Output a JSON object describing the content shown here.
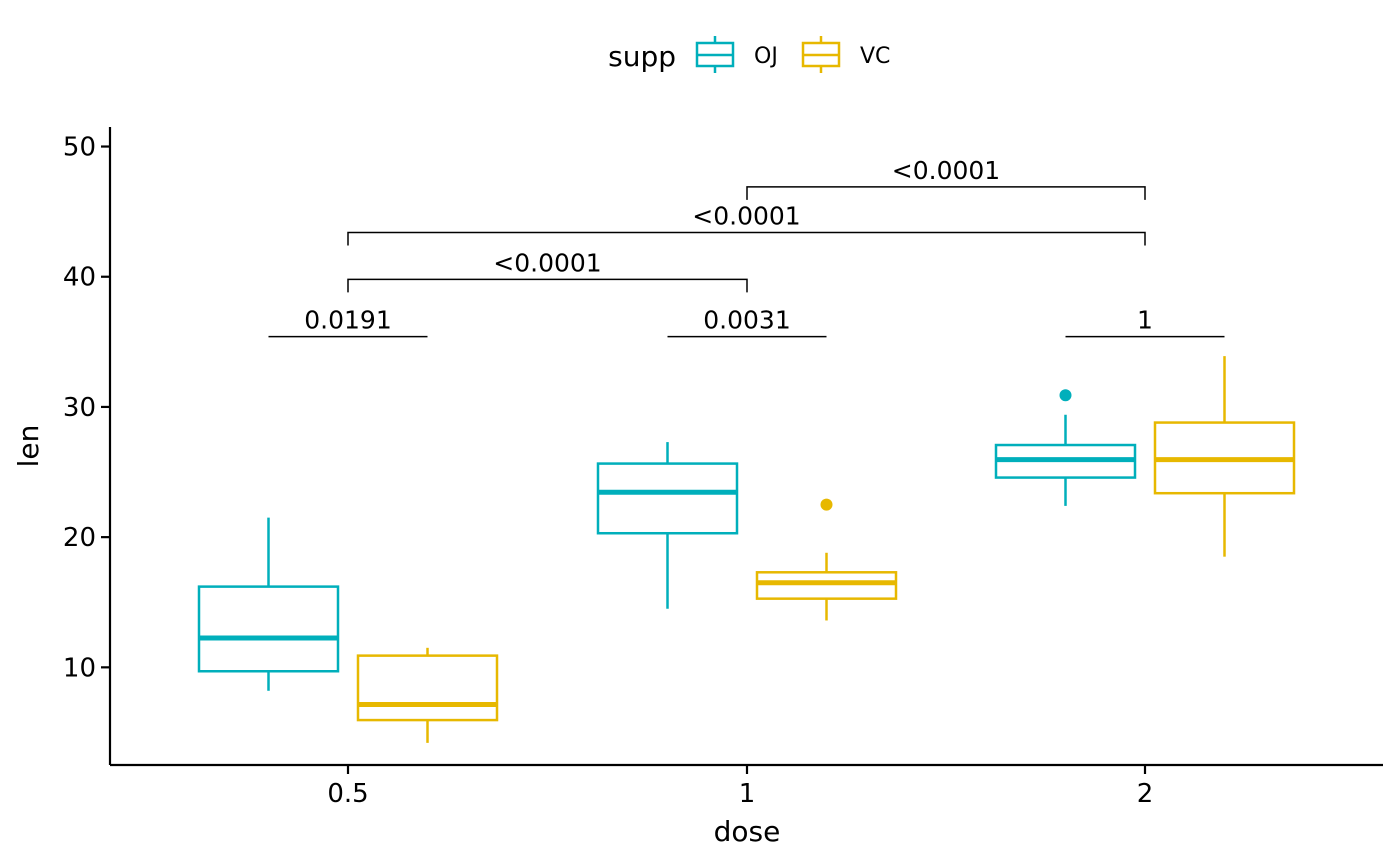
{
  "chart_data": {
    "type": "boxplot",
    "xlabel": "dose",
    "ylabel": "len",
    "categories": [
      "0.5",
      "1",
      "2"
    ],
    "ylim": [
      2.5,
      51.5
    ],
    "yticks": [
      10,
      20,
      30,
      40,
      50
    ],
    "ytick_labels": [
      "10",
      "20",
      "30",
      "40",
      "50"
    ],
    "grid": false,
    "legend": {
      "title": "supp",
      "position": "top"
    },
    "series": [
      {
        "name": "OJ",
        "color": "#00AFBB",
        "boxes": [
          {
            "category": "0.5",
            "whisker_low": 8.2,
            "q1": 9.7,
            "median": 12.25,
            "q3": 16.2,
            "whisker_high": 21.5,
            "outliers": []
          },
          {
            "category": "1",
            "whisker_low": 14.5,
            "q1": 20.3,
            "median": 23.45,
            "q3": 25.65,
            "whisker_high": 27.3,
            "outliers": []
          },
          {
            "category": "2",
            "whisker_low": 22.4,
            "q1": 24.575,
            "median": 25.95,
            "q3": 27.075,
            "whisker_high": 29.4,
            "outliers": [
              30.9
            ]
          }
        ]
      },
      {
        "name": "VC",
        "color": "#E7B800",
        "boxes": [
          {
            "category": "0.5",
            "whisker_low": 4.2,
            "q1": 5.95,
            "median": 7.15,
            "q3": 10.9,
            "whisker_high": 11.5,
            "outliers": []
          },
          {
            "category": "1",
            "whisker_low": 13.6,
            "q1": 15.275,
            "median": 16.5,
            "q3": 17.3,
            "whisker_high": 18.8,
            "outliers": [
              22.5
            ]
          },
          {
            "category": "2",
            "whisker_low": 18.5,
            "q1": 23.375,
            "median": 25.95,
            "q3": 28.8,
            "whisker_high": 33.9,
            "outliers": []
          }
        ]
      }
    ],
    "annotations": [
      {
        "type": "group-comparison",
        "category": "0.5",
        "y": 35.4,
        "label": "0.0191"
      },
      {
        "type": "group-comparison",
        "category": "1",
        "y": 35.4,
        "label": "0.0031"
      },
      {
        "type": "group-comparison",
        "category": "2",
        "y": 35.4,
        "label": "1"
      },
      {
        "type": "bracket",
        "from": "0.5",
        "to": "1",
        "y": 39.8,
        "label": "<0.0001"
      },
      {
        "type": "bracket",
        "from": "0.5",
        "to": "2",
        "y": 43.4,
        "label": "<0.0001"
      },
      {
        "type": "bracket",
        "from": "1",
        "to": "2",
        "y": 46.9,
        "label": "<0.0001"
      }
    ]
  }
}
